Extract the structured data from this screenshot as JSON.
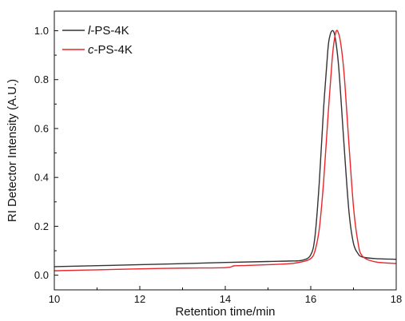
{
  "chart_data": {
    "type": "line",
    "xlabel": "Retention time/min",
    "ylabel": "RI Detector Intensity (A.U.)",
    "xlim": [
      10,
      18
    ],
    "ylim": [
      -0.06,
      1.08
    ],
    "x_ticks": [
      10,
      12,
      14,
      16,
      18
    ],
    "x_tick_labels": [
      "10",
      "12",
      "14",
      "16",
      "18"
    ],
    "y_ticks": [
      0.0,
      0.2,
      0.4,
      0.6,
      0.8,
      1.0
    ],
    "y_tick_labels": [
      "0.0",
      "0.2",
      "0.4",
      "0.6",
      "0.8",
      "1.0"
    ],
    "grid": false,
    "legend_position": "top-left",
    "series": [
      {
        "prefix": "l",
        "suffix": "-PS-4K",
        "color": "#333333",
        "x": [
          10.0,
          12.0,
          14.0,
          15.0,
          15.5,
          15.8,
          16.0,
          16.1,
          16.2,
          16.3,
          16.4,
          16.45,
          16.5,
          16.55,
          16.6,
          16.65,
          16.7,
          16.8,
          16.9,
          17.0,
          17.1,
          17.2,
          17.5,
          18.0
        ],
        "y": [
          0.035,
          0.043,
          0.052,
          0.056,
          0.058,
          0.061,
          0.083,
          0.16,
          0.38,
          0.68,
          0.92,
          0.98,
          1.0,
          0.99,
          0.94,
          0.86,
          0.74,
          0.48,
          0.25,
          0.13,
          0.09,
          0.075,
          0.068,
          0.065
        ]
      },
      {
        "prefix": "c",
        "suffix": "-PS-4K",
        "color": "#e8262b",
        "x": [
          10.0,
          11.0,
          12.0,
          13.0,
          14.0,
          14.2,
          14.5,
          15.0,
          15.5,
          15.8,
          16.0,
          16.1,
          16.2,
          16.3,
          16.4,
          16.5,
          16.55,
          16.6,
          16.65,
          16.7,
          16.75,
          16.8,
          16.9,
          17.0,
          17.1,
          17.2,
          17.5,
          18.0
        ],
        "y": [
          0.018,
          0.022,
          0.026,
          0.029,
          0.031,
          0.038,
          0.04,
          0.043,
          0.047,
          0.055,
          0.068,
          0.1,
          0.19,
          0.38,
          0.64,
          0.88,
          0.96,
          1.0,
          0.99,
          0.95,
          0.88,
          0.78,
          0.52,
          0.28,
          0.14,
          0.08,
          0.055,
          0.048
        ]
      }
    ]
  }
}
